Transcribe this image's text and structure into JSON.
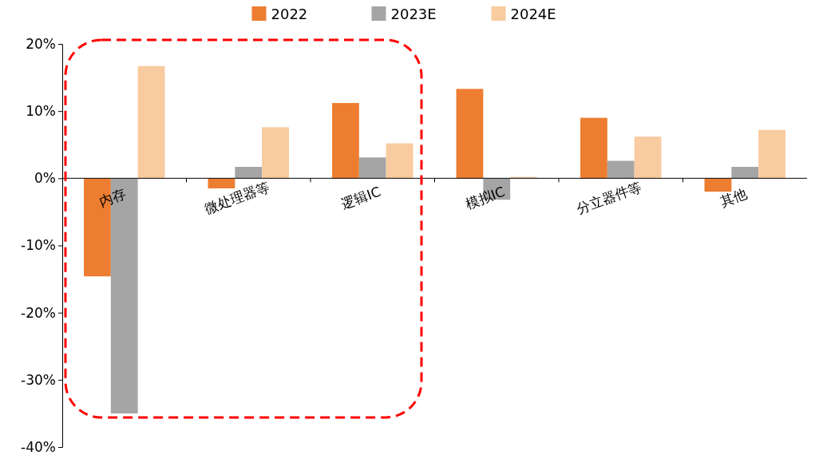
{
  "chart_data": {
    "type": "bar",
    "categories": [
      "内存",
      "微处理器等",
      "逻辑IC",
      "模拟IC",
      "分立器件等",
      "其他"
    ],
    "series": [
      {
        "name": "2022",
        "color": "#ed7d31",
        "values": [
          -14.6,
          -1.5,
          11.2,
          13.3,
          9.0,
          -2.0
        ]
      },
      {
        "name": "2023E",
        "color": "#a5a5a5",
        "values": [
          -35,
          1.7,
          3.1,
          -3.2,
          2.6,
          1.7
        ]
      },
      {
        "name": "2024E",
        "color": "#f8cba0",
        "values": [
          16.7,
          7.6,
          5.2,
          0.2,
          6.2,
          7.2
        ]
      }
    ],
    "ylim": [
      -40,
      20
    ],
    "yticks": [
      {
        "value": -40,
        "label": "-40%"
      },
      {
        "value": -30,
        "label": "-30%"
      },
      {
        "value": -20,
        "label": "-20%"
      },
      {
        "value": -10,
        "label": "-10%"
      },
      {
        "value": 0,
        "label": "0%"
      },
      {
        "value": 10,
        "label": "10%"
      },
      {
        "value": 20,
        "label": "20%"
      }
    ],
    "legend": "top"
  }
}
